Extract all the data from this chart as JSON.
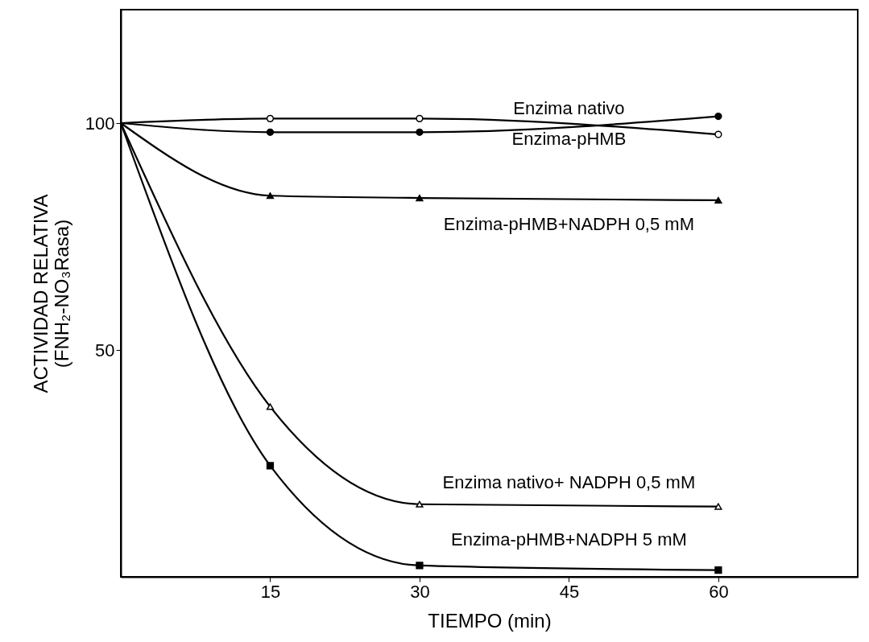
{
  "chart_data": {
    "type": "line",
    "xlabel": "TIEMPO (min)",
    "ylabel": "ACTIVIDAD RELATIVA\n(FNH₂-NO₃Rasa)",
    "x": [
      0,
      15,
      30,
      60
    ],
    "series": [
      {
        "name": "Enzima nativo",
        "color": "#000000",
        "marker": "circle",
        "values": [
          100,
          101,
          101,
          97.5
        ]
      },
      {
        "name": "Enzima-pHMB",
        "color": "#000000",
        "marker": "circle",
        "values": [
          100,
          98,
          98,
          101.5
        ]
      },
      {
        "name": "Enzima-pHMB+NADPH  0,5 mM",
        "color": "#000000",
        "marker": "triangle",
        "values": [
          100,
          84,
          83.5,
          83
        ]
      },
      {
        "name": "Enzima nativo+ NADPH  0,5 mM",
        "color": "#000000",
        "marker": "triangle",
        "values": [
          100,
          37.5,
          16,
          15.5
        ]
      },
      {
        "name": "Enzima-pHMB+NADPH  5 mM",
        "color": "#000000",
        "marker": "square",
        "values": [
          100,
          24.5,
          2.5,
          1.5
        ]
      }
    ],
    "xlim": [
      0,
      74
    ],
    "ylim": [
      0,
      125
    ],
    "xticks": [
      15,
      30,
      45,
      60
    ],
    "yticks": [
      50,
      100
    ],
    "grid": false,
    "legend": false
  }
}
